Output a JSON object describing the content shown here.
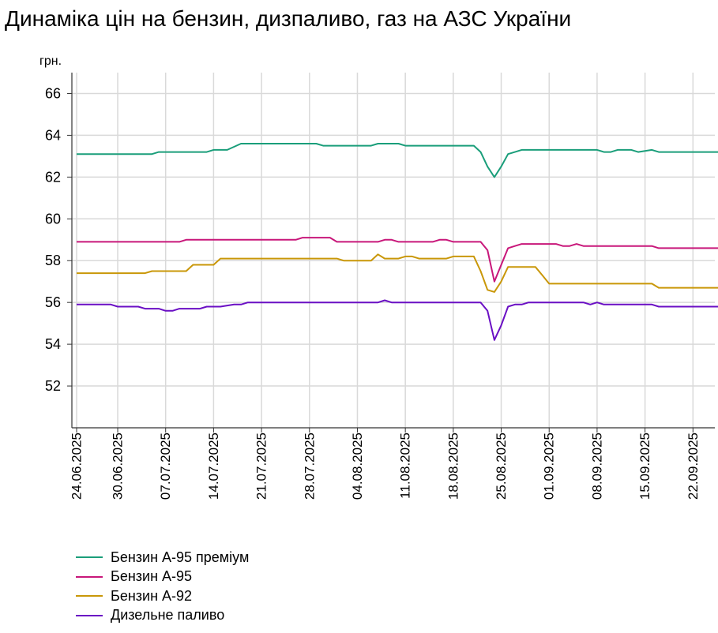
{
  "title": "Динаміка цін на бензин, дизпаливо, газ на АЗС України",
  "chart_data": {
    "type": "line",
    "title": "Динаміка цін на бензин, дизпаливо, газ на АЗС України",
    "ylabel": "грн.",
    "xlabel": "",
    "ylim": [
      50,
      67
    ],
    "y_ticks": [
      52,
      54,
      56,
      58,
      60,
      62,
      64,
      66
    ],
    "grid": true,
    "legend_position": "bottom-left",
    "x_range": [
      "2025-06-24",
      "2025-09-27"
    ],
    "x_ticks": [
      "24.06.2025",
      "30.06.2025",
      "07.07.2025",
      "14.07.2025",
      "21.07.2025",
      "28.07.2025",
      "04.08.2025",
      "11.08.2025",
      "18.08.2025",
      "25.08.2025",
      "01.09.2025",
      "08.09.2025",
      "15.09.2025",
      "22.09.2025"
    ],
    "series": [
      {
        "name": "Бензин А-95 преміум",
        "color": "#1a9e7a",
        "points": [
          [
            "2025-06-24",
            63.1
          ],
          [
            "2025-07-05",
            63.1
          ],
          [
            "2025-07-06",
            63.2
          ],
          [
            "2025-07-13",
            63.2
          ],
          [
            "2025-07-14",
            63.3
          ],
          [
            "2025-07-16",
            63.3
          ],
          [
            "2025-07-18",
            63.6
          ],
          [
            "2025-07-29",
            63.6
          ],
          [
            "2025-07-30",
            63.5
          ],
          [
            "2025-08-06",
            63.5
          ],
          [
            "2025-08-07",
            63.6
          ],
          [
            "2025-08-10",
            63.6
          ],
          [
            "2025-08-11",
            63.5
          ],
          [
            "2025-08-21",
            63.5
          ],
          [
            "2025-08-22",
            63.2
          ],
          [
            "2025-08-23",
            62.5
          ],
          [
            "2025-08-24",
            62.0
          ],
          [
            "2025-08-25",
            62.5
          ],
          [
            "2025-08-26",
            63.1
          ],
          [
            "2025-08-27",
            63.2
          ],
          [
            "2025-08-28",
            63.3
          ],
          [
            "2025-09-08",
            63.3
          ],
          [
            "2025-09-09",
            63.2
          ],
          [
            "2025-09-10",
            63.2
          ],
          [
            "2025-09-11",
            63.3
          ],
          [
            "2025-09-13",
            63.3
          ],
          [
            "2025-09-14",
            63.2
          ],
          [
            "2025-09-16",
            63.3
          ],
          [
            "2025-09-17",
            63.2
          ],
          [
            "2025-09-27",
            63.2
          ]
        ]
      },
      {
        "name": "Бензин А-95",
        "color": "#c8177a",
        "points": [
          [
            "2025-06-24",
            58.9
          ],
          [
            "2025-07-09",
            58.9
          ],
          [
            "2025-07-10",
            59.0
          ],
          [
            "2025-07-25",
            59.0
          ],
          [
            "2025-07-26",
            59.0
          ],
          [
            "2025-07-27",
            59.1
          ],
          [
            "2025-07-31",
            59.1
          ],
          [
            "2025-08-01",
            58.9
          ],
          [
            "2025-08-07",
            58.9
          ],
          [
            "2025-08-08",
            59.0
          ],
          [
            "2025-08-09",
            59.0
          ],
          [
            "2025-08-10",
            58.9
          ],
          [
            "2025-08-15",
            58.9
          ],
          [
            "2025-08-16",
            59.0
          ],
          [
            "2025-08-17",
            59.0
          ],
          [
            "2025-08-18",
            58.9
          ],
          [
            "2025-08-22",
            58.9
          ],
          [
            "2025-08-23",
            58.5
          ],
          [
            "2025-08-24",
            57.0
          ],
          [
            "2025-08-26",
            58.6
          ],
          [
            "2025-08-27",
            58.7
          ],
          [
            "2025-08-28",
            58.8
          ],
          [
            "2025-09-02",
            58.8
          ],
          [
            "2025-09-03",
            58.7
          ],
          [
            "2025-09-04",
            58.7
          ],
          [
            "2025-09-05",
            58.8
          ],
          [
            "2025-09-06",
            58.7
          ],
          [
            "2025-09-16",
            58.7
          ],
          [
            "2025-09-17",
            58.6
          ],
          [
            "2025-09-27",
            58.6
          ]
        ]
      },
      {
        "name": "Бензин А-92",
        "color": "#c99708",
        "points": [
          [
            "2025-06-24",
            57.4
          ],
          [
            "2025-07-04",
            57.4
          ],
          [
            "2025-07-05",
            57.5
          ],
          [
            "2025-07-10",
            57.5
          ],
          [
            "2025-07-11",
            57.8
          ],
          [
            "2025-07-14",
            57.8
          ],
          [
            "2025-07-15",
            58.1
          ],
          [
            "2025-08-01",
            58.1
          ],
          [
            "2025-08-02",
            58.0
          ],
          [
            "2025-08-06",
            58.0
          ],
          [
            "2025-08-07",
            58.3
          ],
          [
            "2025-08-08",
            58.1
          ],
          [
            "2025-08-10",
            58.1
          ],
          [
            "2025-08-11",
            58.2
          ],
          [
            "2025-08-12",
            58.2
          ],
          [
            "2025-08-13",
            58.1
          ],
          [
            "2025-08-17",
            58.1
          ],
          [
            "2025-08-18",
            58.2
          ],
          [
            "2025-08-21",
            58.2
          ],
          [
            "2025-08-22",
            57.5
          ],
          [
            "2025-08-23",
            56.6
          ],
          [
            "2025-08-24",
            56.5
          ],
          [
            "2025-08-25",
            57.0
          ],
          [
            "2025-08-26",
            57.7
          ],
          [
            "2025-08-30",
            57.7
          ],
          [
            "2025-08-31",
            57.3
          ],
          [
            "2025-09-01",
            56.9
          ],
          [
            "2025-09-16",
            56.9
          ],
          [
            "2025-09-17",
            56.7
          ],
          [
            "2025-09-27",
            56.7
          ]
        ]
      },
      {
        "name": "Дизельне паливо",
        "color": "#6a0fc4",
        "points": [
          [
            "2025-06-24",
            55.9
          ],
          [
            "2025-06-29",
            55.9
          ],
          [
            "2025-06-30",
            55.8
          ],
          [
            "2025-07-03",
            55.8
          ],
          [
            "2025-07-04",
            55.7
          ],
          [
            "2025-07-06",
            55.7
          ],
          [
            "2025-07-07",
            55.6
          ],
          [
            "2025-07-08",
            55.6
          ],
          [
            "2025-07-09",
            55.7
          ],
          [
            "2025-07-12",
            55.7
          ],
          [
            "2025-07-13",
            55.8
          ],
          [
            "2025-07-15",
            55.8
          ],
          [
            "2025-07-17",
            55.9
          ],
          [
            "2025-07-18",
            55.9
          ],
          [
            "2025-07-19",
            56.0
          ],
          [
            "2025-07-22",
            56.0
          ],
          [
            "2025-07-23",
            56.0
          ],
          [
            "2025-08-07",
            56.0
          ],
          [
            "2025-08-08",
            56.1
          ],
          [
            "2025-08-09",
            56.0
          ],
          [
            "2025-08-22",
            56.0
          ],
          [
            "2025-08-23",
            55.6
          ],
          [
            "2025-08-24",
            54.2
          ],
          [
            "2025-08-25",
            54.9
          ],
          [
            "2025-08-26",
            55.8
          ],
          [
            "2025-08-27",
            55.9
          ],
          [
            "2025-08-28",
            55.9
          ],
          [
            "2025-08-29",
            56.0
          ],
          [
            "2025-09-06",
            56.0
          ],
          [
            "2025-09-07",
            55.9
          ],
          [
            "2025-09-08",
            56.0
          ],
          [
            "2025-09-09",
            55.9
          ],
          [
            "2025-09-16",
            55.9
          ],
          [
            "2025-09-17",
            55.8
          ],
          [
            "2025-09-27",
            55.8
          ]
        ]
      }
    ]
  }
}
